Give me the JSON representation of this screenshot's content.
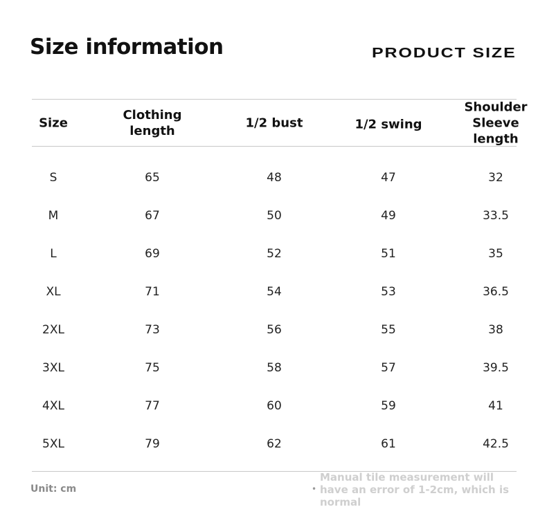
{
  "title": "Size information",
  "brand": "PRODUCT SIZE",
  "table": {
    "headers": [
      "Size",
      "Clothing length",
      "1/2 bust",
      "1/2 swing",
      "Shoulder Sleeve length"
    ],
    "rows": [
      [
        "S",
        "65",
        "48",
        "47",
        "32"
      ],
      [
        "M",
        "67",
        "50",
        "49",
        "33.5"
      ],
      [
        "L",
        "69",
        "52",
        "51",
        "35"
      ],
      [
        "XL",
        "71",
        "54",
        "53",
        "36.5"
      ],
      [
        "2XL",
        "73",
        "56",
        "55",
        "38"
      ],
      [
        "3XL",
        "75",
        "58",
        "57",
        "39.5"
      ],
      [
        "4XL",
        "77",
        "60",
        "59",
        "41"
      ],
      [
        "5XL",
        "79",
        "62",
        "61",
        "42.5"
      ]
    ]
  },
  "footer": {
    "unit": "Unit: cm",
    "note": "Manual tile measurement will have an error of 1-2cm, which is normal"
  }
}
